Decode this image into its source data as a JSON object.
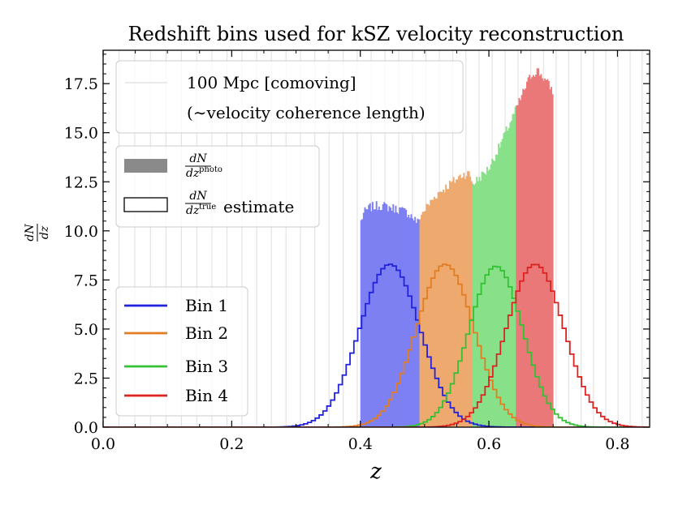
{
  "chart_data": {
    "type": "histogram",
    "title": "Redshift bins used for kSZ velocity reconstruction",
    "xlabel": "z",
    "ylabel": "dN/dz",
    "ylabel_num": "dN",
    "ylabel_den": "dz",
    "xlim": [
      0.0,
      0.85
    ],
    "ylim": [
      0.0,
      19.2
    ],
    "xticks": [
      0.0,
      0.2,
      0.4,
      0.6,
      0.8
    ],
    "xtick_labels": [
      "0.0",
      "0.2",
      "0.4",
      "0.6",
      "0.8"
    ],
    "yticks": [
      0.0,
      2.5,
      5.0,
      7.5,
      10.0,
      12.5,
      15.0,
      17.5
    ],
    "ytick_labels": [
      "0.0",
      "2.5",
      "5.0",
      "7.5",
      "10.0",
      "12.5",
      "15.0",
      "17.5"
    ],
    "comoving_lines_z": [
      0.0247,
      0.0492,
      0.0736,
      0.0978,
      0.1218,
      0.1456,
      0.1692,
      0.1926,
      0.2158,
      0.2389,
      0.2617,
      0.2844,
      0.3069,
      0.3292,
      0.3514,
      0.3734,
      0.3952,
      0.4169,
      0.4384,
      0.4598,
      0.481,
      0.502,
      0.5229,
      0.5437,
      0.5643,
      0.5847,
      0.605,
      0.6252,
      0.6453,
      0.6652,
      0.685,
      0.7046,
      0.7241,
      0.7435,
      0.7627,
      0.7819,
      0.8009,
      0.8197,
      0.8385
    ],
    "photo_histogram": {
      "bin_width": 0.002,
      "z_range": [
        0.4,
        0.7
      ],
      "anchors": [
        [
          0.4,
          10.4
        ],
        [
          0.405,
          10.9
        ],
        [
          0.415,
          11.2
        ],
        [
          0.43,
          11.3
        ],
        [
          0.445,
          11.2
        ],
        [
          0.46,
          11.1
        ],
        [
          0.475,
          10.9
        ],
        [
          0.49,
          10.4
        ],
        [
          0.492,
          10.7
        ],
        [
          0.505,
          11.3
        ],
        [
          0.52,
          11.9
        ],
        [
          0.54,
          12.4
        ],
        [
          0.56,
          12.9
        ],
        [
          0.57,
          12.9
        ],
        [
          0.575,
          12.4
        ],
        [
          0.585,
          12.7
        ],
        [
          0.6,
          13.2
        ],
        [
          0.615,
          14.2
        ],
        [
          0.63,
          15.3
        ],
        [
          0.645,
          16.4
        ],
        [
          0.655,
          17.2
        ],
        [
          0.665,
          17.9
        ],
        [
          0.675,
          18.2
        ],
        [
          0.685,
          17.8
        ],
        [
          0.7,
          17.1
        ]
      ],
      "noise_amplitude": 0.25
    },
    "bins": [
      {
        "name": "Bin 1",
        "color": "#2222dd",
        "fill": "#7c80f2",
        "z_low": 0.4,
        "z_high": 0.492,
        "true_mean": 0.446,
        "true_sigma": 0.047,
        "true_peak": 8.3
      },
      {
        "name": "Bin 2",
        "color": "#e27d22",
        "fill": "#eeaa6e",
        "z_low": 0.492,
        "z_high": 0.575,
        "true_mean": 0.532,
        "true_sigma": 0.045,
        "true_peak": 8.3
      },
      {
        "name": "Bin 3",
        "color": "#33c233",
        "fill": "#88e088",
        "z_low": 0.575,
        "z_high": 0.642,
        "true_mean": 0.611,
        "true_sigma": 0.042,
        "true_peak": 8.2
      },
      {
        "name": "Bin 4",
        "color": "#dd2222",
        "fill": "#ea7878",
        "z_low": 0.642,
        "z_high": 0.7,
        "true_mean": 0.672,
        "true_sigma": 0.045,
        "true_peak": 8.3
      }
    ],
    "true_step_width": 0.006,
    "legend_comoving": {
      "line1": "100 Mpc [comoving]",
      "line2": "(∼velocity coherence length)",
      "location": "top-left"
    },
    "legend_hist": {
      "photo_num": "dN",
      "photo_den": "dz",
      "photo_sup": "photo",
      "true_num": "dN",
      "true_den": "dz",
      "true_sup": "true",
      "true_suffix": "estimate",
      "location": "upper-left"
    },
    "legend_bins_location": "lower-left"
  }
}
